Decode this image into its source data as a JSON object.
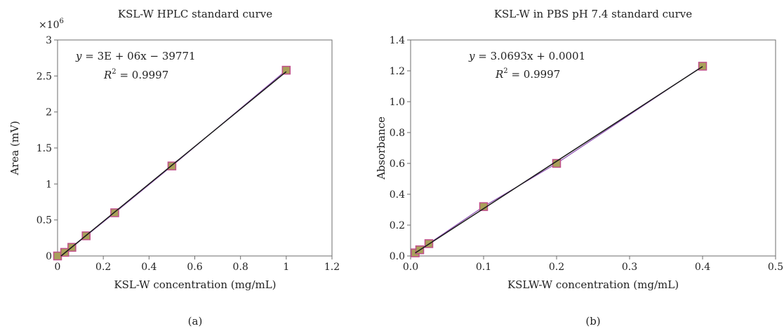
{
  "chart_data": [
    {
      "type": "scatter",
      "title": "KSL-W HPLC standard curve",
      "xlabel": "KSL-W concentration (mg/mL)",
      "ylabel": "Area (mV)",
      "y_multiplier_label": "×10",
      "y_multiplier_exp": "6",
      "xlim": [
        0,
        1.2
      ],
      "ylim": [
        0,
        3
      ],
      "x_ticks": [
        "0",
        "0.2",
        "0.4",
        "0.6",
        "0.8",
        "1",
        "1.2"
      ],
      "y_ticks": [
        "0",
        "0.5",
        "1",
        "1.5",
        "2",
        "2.5",
        "3"
      ],
      "series": [
        {
          "x": [
            0,
            0.03125,
            0.0625,
            0.125,
            0.25,
            0.5,
            1.0
          ],
          "y": [
            0.0,
            0.05,
            0.12,
            0.28,
            0.6,
            1.25,
            2.58
          ]
        }
      ],
      "trendline": {
        "slope": 2.6,
        "intercept": -0.039771
      },
      "equation": {
        "y": "y",
        "rest": " = 3E + 06x − 39771",
        "r_label": "R",
        "r_exp": "2",
        "r_rest": " = 0.9997"
      },
      "caption": "(a)",
      "colors": {
        "marker_fill": "#a9a05a",
        "marker_edge": "#c0508a",
        "line": "#1a1a1a",
        "data_line": "#8c4fb0"
      }
    },
    {
      "type": "scatter",
      "title": "KSL-W in PBS pH 7.4 standard curve",
      "xlabel": "KSLW-W concentration (mg/mL)",
      "ylabel": "Absorbance",
      "xlim": [
        0,
        0.5
      ],
      "ylim": [
        0,
        1.4
      ],
      "x_ticks": [
        "0.0",
        "0.1",
        "0.2",
        "0.3",
        "0.4",
        "0.5"
      ],
      "y_ticks": [
        "0.0",
        "0.2",
        "0.4",
        "0.6",
        "0.8",
        "1.0",
        "1.2",
        "1.4"
      ],
      "series": [
        {
          "x": [
            0.00625,
            0.0125,
            0.025,
            0.1,
            0.2,
            0.4
          ],
          "y": [
            0.02,
            0.04,
            0.08,
            0.32,
            0.6,
            1.23
          ]
        }
      ],
      "trendline": {
        "slope": 3.0693,
        "intercept": 0.0001
      },
      "equation": {
        "y": "y",
        "rest": " = 3.0693x + 0.0001",
        "r_label": "R",
        "r_exp": "2",
        "r_rest": " = 0.9997"
      },
      "caption": "(b)",
      "colors": {
        "marker_fill": "#a9a05a",
        "marker_edge": "#c0508a",
        "line": "#1a1a1a",
        "data_line": "#8c4fb0"
      }
    }
  ]
}
